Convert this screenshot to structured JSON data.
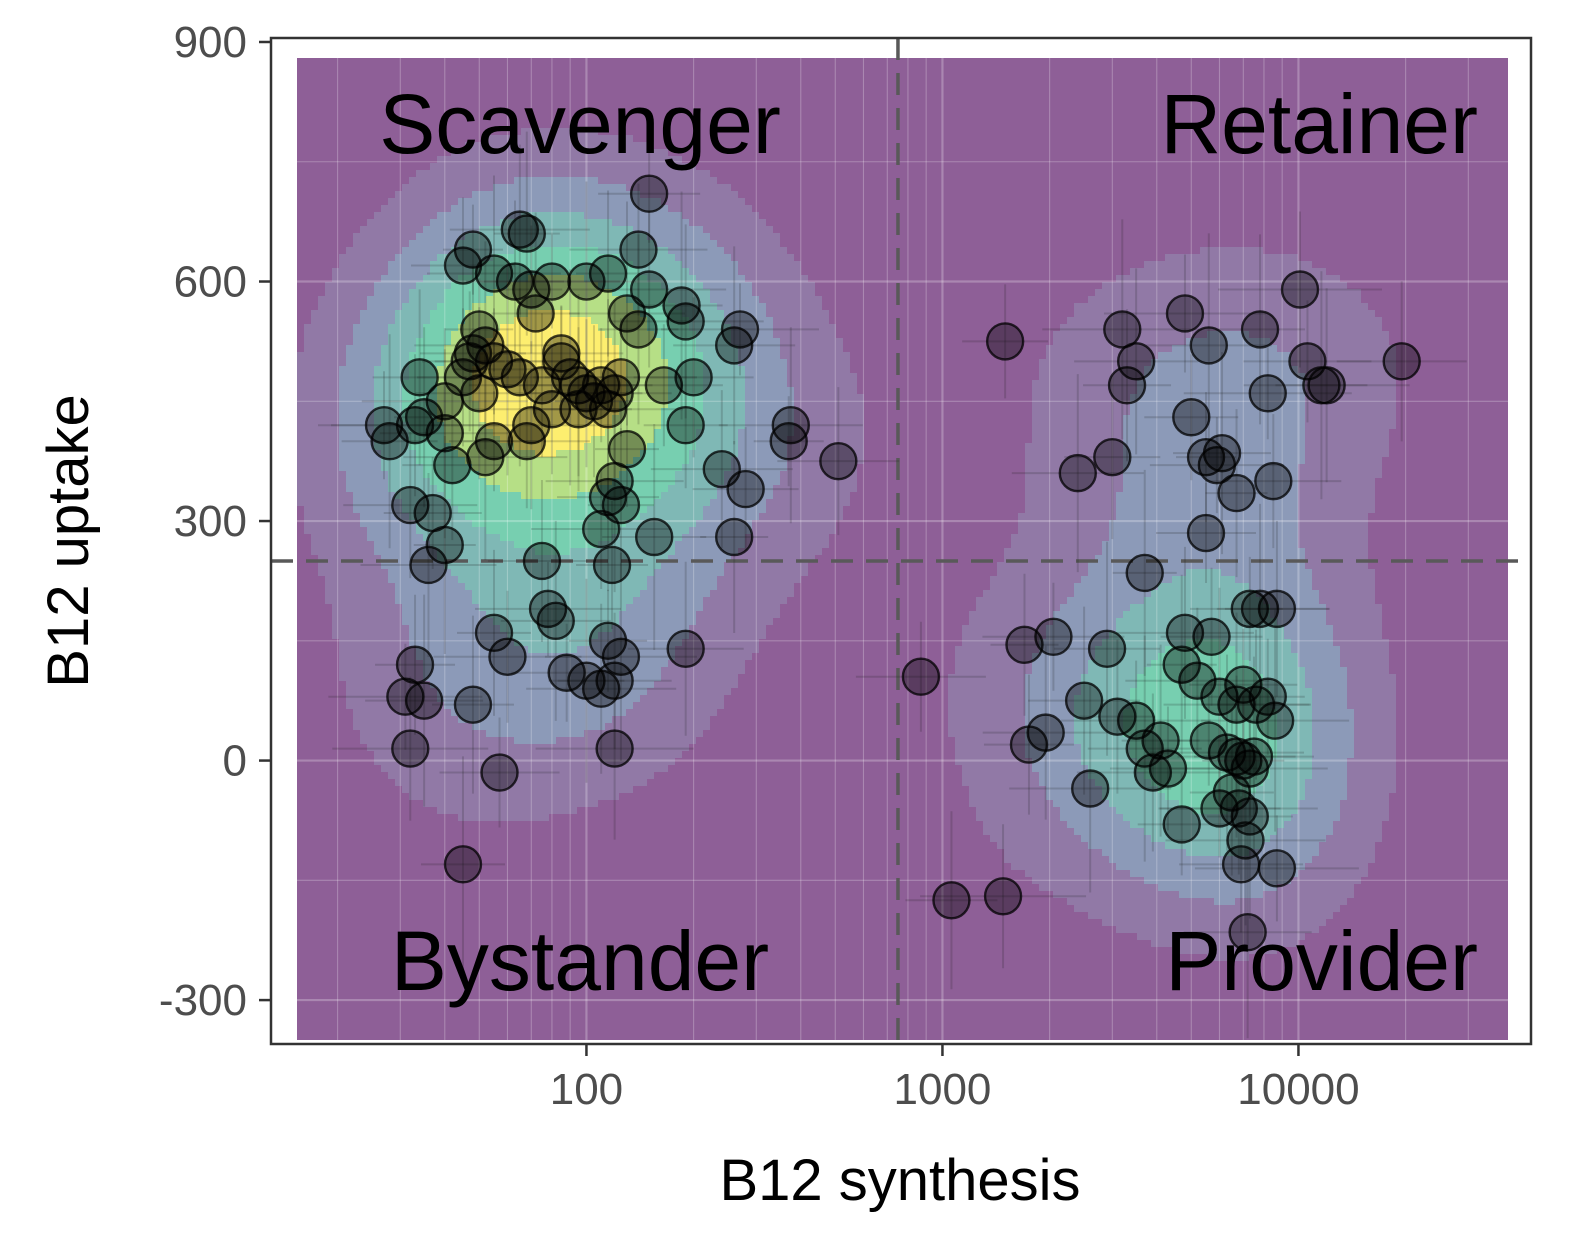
{
  "chart_data": {
    "type": "scatter",
    "title": "",
    "xlabel": "B12 synthesis",
    "ylabel": "B12 uptake",
    "x_scale": "log10",
    "xlim": [
      13,
      45000
    ],
    "ylim": [
      -355,
      905
    ],
    "x_ticks": [
      {
        "value": 100,
        "label": "100"
      },
      {
        "value": 1000,
        "label": "1000"
      },
      {
        "value": 10000,
        "label": "10000"
      }
    ],
    "y_ticks": [
      {
        "value": 900,
        "label": "900"
      },
      {
        "value": 600,
        "label": "600"
      },
      {
        "value": 300,
        "label": "300"
      },
      {
        "value": 0,
        "label": "0"
      },
      {
        "value": -300,
        "label": "-300"
      }
    ],
    "grid": true,
    "threshold_lines": {
      "x": 750,
      "y": 250
    },
    "quadrant_labels": {
      "top_left": "Scavenger",
      "top_right": "Retainer",
      "bottom_left": "Bystander",
      "bottom_right": "Provider"
    },
    "density_palette": [
      "#8e5f97",
      "#9179a6",
      "#8c9ab8",
      "#7fb8b5",
      "#77cfb0",
      "#b6df86",
      "#fdee6f"
    ],
    "point_color": "#000000",
    "points": [
      [
        48,
        640
      ],
      [
        55,
        610
      ],
      [
        63,
        600
      ],
      [
        70,
        590
      ],
      [
        80,
        600
      ],
      [
        100,
        600
      ],
      [
        115,
        610
      ],
      [
        140,
        640
      ],
      [
        150,
        710
      ],
      [
        68,
        660
      ],
      [
        65,
        665
      ],
      [
        45,
        620
      ],
      [
        50,
        540
      ],
      [
        52,
        520
      ],
      [
        48,
        510
      ],
      [
        47,
        500
      ],
      [
        55,
        500
      ],
      [
        60,
        490
      ],
      [
        65,
        480
      ],
      [
        75,
        470
      ],
      [
        85,
        500
      ],
      [
        90,
        480
      ],
      [
        95,
        470
      ],
      [
        100,
        460
      ],
      [
        110,
        470
      ],
      [
        115,
        440
      ],
      [
        120,
        460
      ],
      [
        105,
        450
      ],
      [
        125,
        480
      ],
      [
        130,
        560
      ],
      [
        140,
        540
      ],
      [
        150,
        590
      ],
      [
        165,
        470
      ],
      [
        185,
        570
      ],
      [
        190,
        550
      ],
      [
        200,
        480
      ],
      [
        190,
        420
      ],
      [
        270,
        540
      ],
      [
        260,
        520
      ],
      [
        95,
        440
      ],
      [
        80,
        440
      ],
      [
        85,
        510
      ],
      [
        72,
        560
      ],
      [
        70,
        420
      ],
      [
        68,
        400
      ],
      [
        55,
        400
      ],
      [
        52,
        380
      ],
      [
        50,
        460
      ],
      [
        45,
        480
      ],
      [
        40,
        450
      ],
      [
        40,
        410
      ],
      [
        34,
        480
      ],
      [
        33,
        420
      ],
      [
        27,
        420
      ],
      [
        28,
        400
      ],
      [
        35,
        430
      ],
      [
        32,
        320
      ],
      [
        37,
        310
      ],
      [
        40,
        270
      ],
      [
        36,
        245
      ],
      [
        42,
        370
      ],
      [
        130,
        390
      ],
      [
        120,
        350
      ],
      [
        115,
        330
      ],
      [
        125,
        320
      ],
      [
        110,
        290
      ],
      [
        155,
        280
      ],
      [
        260,
        280
      ],
      [
        240,
        365
      ],
      [
        280,
        340
      ],
      [
        370,
        400
      ],
      [
        375,
        420
      ],
      [
        75,
        250
      ],
      [
        118,
        245
      ],
      [
        78,
        190
      ],
      [
        82,
        175
      ],
      [
        55,
        160
      ],
      [
        60,
        130
      ],
      [
        88,
        110
      ],
      [
        100,
        100
      ],
      [
        110,
        90
      ],
      [
        120,
        100
      ],
      [
        115,
        150
      ],
      [
        125,
        130
      ],
      [
        190,
        140
      ],
      [
        33,
        120
      ],
      [
        31,
        80
      ],
      [
        35,
        75
      ],
      [
        48,
        70
      ],
      [
        32,
        15
      ],
      [
        57,
        -15
      ],
      [
        45,
        -130
      ],
      [
        120,
        15
      ],
      [
        510,
        375
      ],
      [
        1500,
        525
      ],
      [
        3200,
        540
      ],
      [
        3500,
        500
      ],
      [
        3300,
        470
      ],
      [
        4800,
        560
      ],
      [
        5600,
        520
      ],
      [
        7800,
        540
      ],
      [
        10100,
        590
      ],
      [
        10600,
        500
      ],
      [
        11600,
        470
      ],
      [
        12000,
        470
      ],
      [
        19500,
        500
      ],
      [
        5000,
        430
      ],
      [
        8200,
        460
      ],
      [
        2400,
        360
      ],
      [
        3000,
        380
      ],
      [
        5500,
        380
      ],
      [
        5900,
        370
      ],
      [
        6100,
        385
      ],
      [
        6700,
        335
      ],
      [
        8500,
        350
      ],
      [
        5500,
        285
      ],
      [
        3700,
        235
      ],
      [
        4800,
        160
      ],
      [
        5700,
        155
      ],
      [
        7300,
        190
      ],
      [
        7800,
        190
      ],
      [
        8700,
        190
      ],
      [
        1700,
        145
      ],
      [
        2050,
        155
      ],
      [
        2900,
        140
      ],
      [
        4700,
        120
      ],
      [
        5200,
        100
      ],
      [
        7000,
        95
      ],
      [
        6000,
        80
      ],
      [
        6700,
        70
      ],
      [
        7600,
        70
      ],
      [
        8200,
        80
      ],
      [
        8600,
        50
      ],
      [
        2500,
        75
      ],
      [
        3100,
        55
      ],
      [
        3500,
        50
      ],
      [
        3700,
        15
      ],
      [
        4100,
        25
      ],
      [
        3900,
        -15
      ],
      [
        4300,
        -10
      ],
      [
        5600,
        25
      ],
      [
        6300,
        10
      ],
      [
        6700,
        5
      ],
      [
        7000,
        0
      ],
      [
        7300,
        -10
      ],
      [
        7500,
        5
      ],
      [
        6500,
        -40
      ],
      [
        6800,
        -60
      ],
      [
        6000,
        -60
      ],
      [
        7300,
        -70
      ],
      [
        7100,
        -100
      ],
      [
        6900,
        -130
      ],
      [
        4700,
        -80
      ],
      [
        2600,
        -35
      ],
      [
        1950,
        35
      ],
      [
        1750,
        20
      ],
      [
        8700,
        -135
      ],
      [
        7200,
        -215
      ],
      [
        1060,
        -175
      ],
      [
        1480,
        -170
      ],
      [
        870,
        105
      ]
    ]
  }
}
